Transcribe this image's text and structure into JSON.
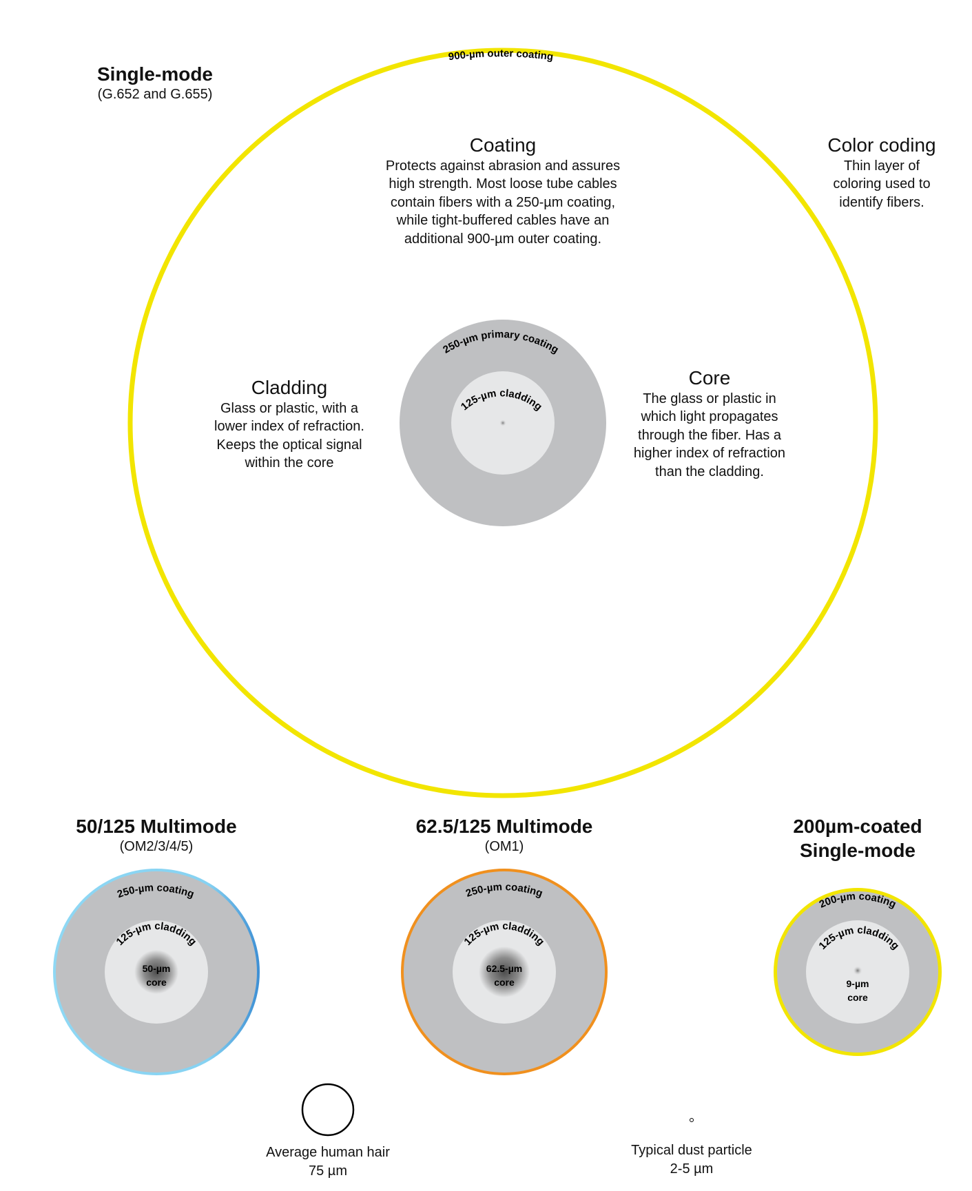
{
  "colors": {
    "single_mode_outer": "#f2e500",
    "om2_outer": "#7fd0f0",
    "om2_outer_edge": "#4a9ad8",
    "om1_outer": "#f0901e",
    "coated200_outer": "#f2e500",
    "coating_gray": "#bfc0c2",
    "cladding_light": "#e6e7e8",
    "core_dark": "#555555"
  },
  "single_mode": {
    "title": "Single-mode",
    "subtitle": "(G.652 and G.655)",
    "outer_coating_label": "900-µm outer coating",
    "primary_coating_label": "250-µm primary coating",
    "cladding_label": "125-µm cladding"
  },
  "coating": {
    "title": "Coating",
    "description": "Protects against abrasion and assures\nhigh strength. Most loose tube cables\ncontain fibers with a 250-µm coating,\nwhile tight-buffered cables have an\nadditional 900-µm outer coating."
  },
  "color_coding": {
    "title": "Color coding",
    "description": "Thin layer of\ncoloring used to\nidentify fibers."
  },
  "cladding": {
    "title": "Cladding",
    "description": "Glass or plastic, with a\nlower index of refraction.\nKeeps the optical signal\nwithin the core"
  },
  "core": {
    "title": "Core",
    "description": "The glass or plastic in\nwhich light propagates\nthrough the fiber. Has a\nhigher index of refraction\nthan the cladding."
  },
  "om2": {
    "title": "50/125 Multimode",
    "subtitle": "(OM2/3/4/5)",
    "coating_label": "250-µm coating",
    "cladding_label": "125-µm cladding",
    "core_line1": "50-µm",
    "core_line2": "core"
  },
  "om1": {
    "title": "62.5/125 Multimode",
    "subtitle": "(OM1)",
    "coating_label": "250-µm coating",
    "cladding_label": "125-µm cladding",
    "core_line1": "62.5-µm",
    "core_line2": "core"
  },
  "coated200": {
    "title_line1": "200µm-coated",
    "title_line2": "Single-mode",
    "coating_label": "200-µm coating",
    "cladding_label": "125-µm cladding",
    "core_line1": "9-µm",
    "core_line2": "core"
  },
  "hair": {
    "label": "Average human hair",
    "size": "75 µm"
  },
  "dust": {
    "label": "Typical dust particle",
    "size": "2-5 µm"
  }
}
